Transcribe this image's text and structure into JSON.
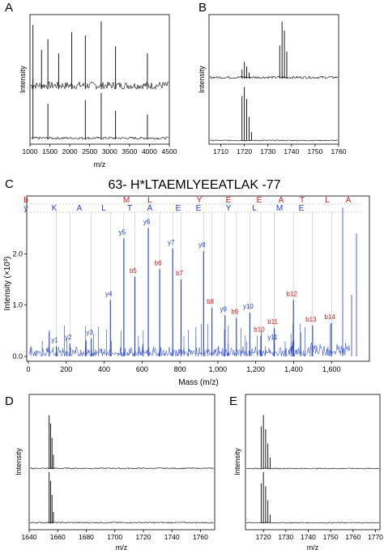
{
  "panels": {
    "A": {
      "letter": "A",
      "xlabel": "m/z",
      "ylabel": "Intensity"
    },
    "B": {
      "letter": "B",
      "ylabel": "Intensity"
    },
    "C": {
      "letter": "C",
      "title": "63- H*LTAEMLYEEATLAK -77",
      "ylabel": "Intensity (×10³)",
      "xlabel": "Mass (m/z)"
    },
    "D": {
      "letter": "D",
      "xlabel": "m/z",
      "ylabel": "Intensity"
    },
    "E": {
      "letter": "E",
      "xlabel": "m/z",
      "ylabel": "Intensity"
    }
  },
  "chart_data": [
    {
      "panel": "A",
      "type": "line",
      "xlim": [
        1000,
        4500
      ],
      "x_ticks": [
        "1000",
        "1500",
        "2000",
        "2500",
        "3000",
        "3500",
        "4000",
        "4500"
      ],
      "series": [
        {
          "peaks_mz": [
            1075,
            1290,
            1450,
            1720,
            2050,
            2390,
            2790,
            3150,
            3950
          ],
          "rel_intensity": [
            0.9,
            0.55,
            0.7,
            0.5,
            0.8,
            0.75,
            0.95,
            0.6,
            0.5
          ]
        },
        {
          "peaks_mz": [
            1075,
            1450,
            2390,
            2790,
            3150,
            3950
          ],
          "rel_intensity": [
            0.85,
            0.5,
            0.55,
            0.65,
            0.4,
            0.35
          ]
        }
      ]
    },
    {
      "panel": "B",
      "type": "line",
      "xlim": [
        1705,
        1760
      ],
      "x_ticks": [
        "1710",
        "1720",
        "1730",
        "1740",
        "1750",
        "1760"
      ],
      "series": [
        {
          "peaks_mz": [
            1719,
            1720,
            1721,
            1722,
            1735,
            1736,
            1737,
            1738
          ],
          "rel_intensity": [
            0.15,
            0.28,
            0.2,
            0.1,
            0.55,
            0.95,
            0.8,
            0.45
          ]
        },
        {
          "peaks_mz": [
            1719,
            1720,
            1721,
            1722,
            1723
          ],
          "rel_intensity": [
            0.75,
            0.9,
            0.7,
            0.4,
            0.15
          ]
        }
      ]
    },
    {
      "panel": "C",
      "type": "bar",
      "xlim": [
        0,
        1800
      ],
      "ylim": [
        0,
        3
      ],
      "x_ticks": [
        "0",
        "200",
        "400",
        "600",
        "800",
        "1,000",
        "1,200",
        "1,400",
        "1,600"
      ],
      "y_ticks": [
        "0.0",
        "1.0",
        "2.0"
      ],
      "sequence_b": [
        "b",
        "M",
        "L",
        "Y",
        "E",
        "E",
        "A",
        "T",
        "L",
        "A"
      ],
      "sequence_y": [
        "y",
        "K",
        "A",
        "L",
        "T",
        "A",
        "E",
        "E",
        "Y",
        "L",
        "M",
        "E"
      ],
      "labeled_peaks": [
        {
          "label": "y1",
          "mz": 148,
          "intensity": 0.2,
          "ion": "y"
        },
        {
          "label": "y2",
          "mz": 219,
          "intensity": 0.25,
          "ion": "y"
        },
        {
          "label": "y3",
          "mz": 332,
          "intensity": 0.35,
          "ion": "y"
        },
        {
          "label": "y4",
          "mz": 433,
          "intensity": 1.1,
          "ion": "y"
        },
        {
          "label": "y5",
          "mz": 504,
          "intensity": 2.3,
          "ion": "y"
        },
        {
          "label": "y6",
          "mz": 633,
          "intensity": 2.5,
          "ion": "y"
        },
        {
          "label": "y7",
          "mz": 762,
          "intensity": 2.1,
          "ion": "y"
        },
        {
          "label": "y8",
          "mz": 925,
          "intensity": 2.05,
          "ion": "y"
        },
        {
          "label": "y9",
          "mz": 1038,
          "intensity": 0.8,
          "ion": "y"
        },
        {
          "label": "y10",
          "mz": 1169,
          "intensity": 0.85,
          "ion": "y"
        },
        {
          "label": "y11",
          "mz": 1298,
          "intensity": 0.25,
          "ion": "y"
        },
        {
          "label": "b5",
          "mz": 562,
          "intensity": 1.55,
          "ion": "b"
        },
        {
          "label": "b6",
          "mz": 693,
          "intensity": 1.7,
          "ion": "b"
        },
        {
          "label": "b7",
          "mz": 806,
          "intensity": 1.5,
          "ion": "b"
        },
        {
          "label": "b8",
          "mz": 969,
          "intensity": 0.95,
          "ion": "b"
        },
        {
          "label": "b9",
          "mz": 1098,
          "intensity": 0.75,
          "ion": "b"
        },
        {
          "label": "b10",
          "mz": 1227,
          "intensity": 0.4,
          "ion": "b"
        },
        {
          "label": "b11",
          "mz": 1298,
          "intensity": 0.55,
          "ion": "b"
        },
        {
          "label": "b12",
          "mz": 1399,
          "intensity": 1.1,
          "ion": "b"
        },
        {
          "label": "b13",
          "mz": 1500,
          "intensity": 0.6,
          "ion": "b"
        },
        {
          "label": "b14",
          "mz": 1600,
          "intensity": 0.65,
          "ion": "b"
        }
      ]
    },
    {
      "panel": "D",
      "type": "line",
      "xlim": [
        1640,
        1770
      ],
      "x_ticks": [
        "1640",
        "1660",
        "1680",
        "1700",
        "1720",
        "1740",
        "1760"
      ],
      "series": [
        {
          "peaks_mz": [
            1654,
            1655,
            1656,
            1657
          ],
          "rel_intensity": [
            0.95,
            0.8,
            0.55,
            0.25
          ]
        },
        {
          "peaks_mz": [
            1654,
            1655,
            1656,
            1657
          ],
          "rel_intensity": [
            0.9,
            0.75,
            0.5,
            0.2
          ]
        }
      ]
    },
    {
      "panel": "E",
      "type": "line",
      "xlim": [
        1712,
        1772
      ],
      "x_ticks": [
        "1720",
        "1730",
        "1740",
        "1750",
        "1760",
        "1770"
      ],
      "series": [
        {
          "peaks_mz": [
            1719,
            1720,
            1721,
            1722,
            1723
          ],
          "rel_intensity": [
            0.75,
            0.95,
            0.7,
            0.45,
            0.2
          ]
        },
        {
          "peaks_mz": [
            1719,
            1720,
            1721,
            1722,
            1723
          ],
          "rel_intensity": [
            0.7,
            0.9,
            0.65,
            0.4,
            0.15
          ]
        }
      ]
    }
  ]
}
